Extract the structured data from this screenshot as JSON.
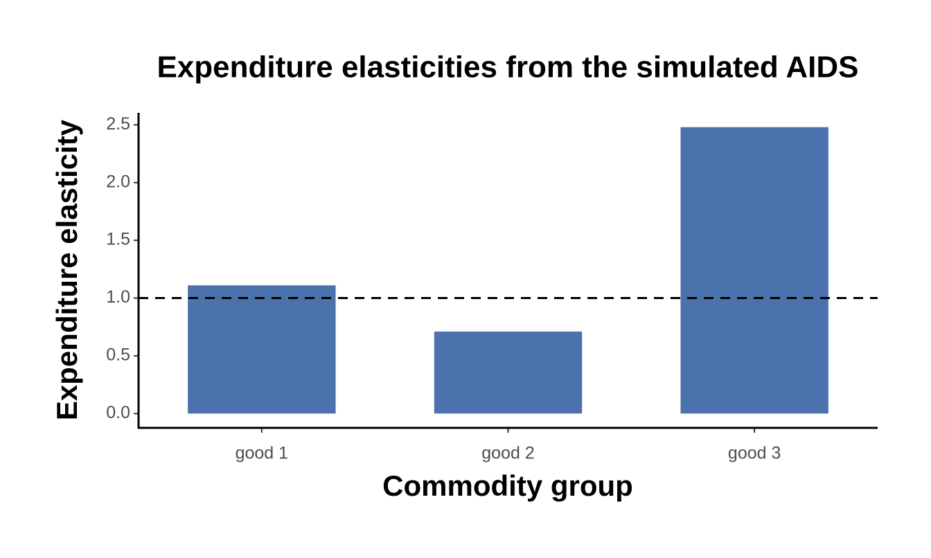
{
  "chart_data": {
    "type": "bar",
    "title": "Expenditure elasticities from the simulated AIDS",
    "x_label": "Commodity group",
    "y_label": "Expenditure elasticity",
    "categories": [
      "good 1",
      "good 2",
      "good 3"
    ],
    "values": [
      1.11,
      0.71,
      2.48
    ],
    "color": "#4c72ae",
    "ylim": [
      -0.124,
      2.604
    ],
    "yticks": [
      {
        "value": 0,
        "label": "0.0"
      },
      0.5,
      {
        "value": 1,
        "label": "1.0"
      },
      1.5,
      {
        "value": 2,
        "label": "2.0"
      },
      2.5
    ],
    "reference_line": {
      "value": 1,
      "style": "dashed",
      "color": "#000000"
    },
    "grid": false
  }
}
